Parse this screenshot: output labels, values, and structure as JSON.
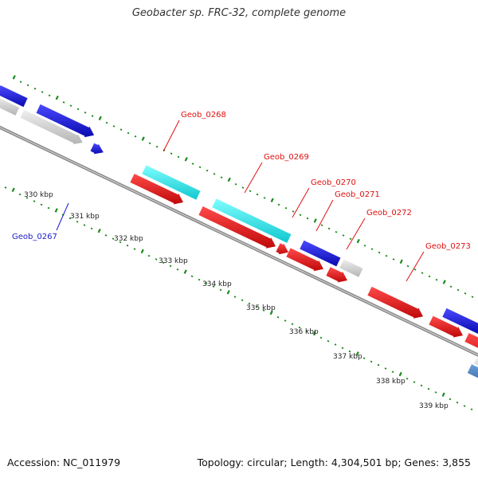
{
  "title": "Geobacter sp. FRC-32, complete genome",
  "footer": {
    "accession": "Accession: NC_011979",
    "summary": "Topology: circular; Length: 4,304,501 bp; Genes: 3,855"
  },
  "ticks": [
    "330 kbp",
    "331 kbp",
    "332 kbp",
    "333 kbp",
    "334 kbp",
    "335 kbp",
    "336 kbp",
    "337 kbp",
    "338 kbp",
    "339 kbp"
  ],
  "gene_labels": [
    "Geob_0267",
    "Geob_0268",
    "Geob_0269",
    "Geob_0270",
    "Geob_0271",
    "Geob_0272",
    "Geob_0273"
  ],
  "colors": {
    "forward_cds": "#1a1ae6",
    "forward_alt": "#19e6e6",
    "reverse_cds": "#e61a1a",
    "other": "#c8c8c8",
    "backbone": "#888888",
    "tick_marks": "#1a8a1a",
    "label_forward": "#1a1acc",
    "label_reverse": "#e01010"
  }
}
